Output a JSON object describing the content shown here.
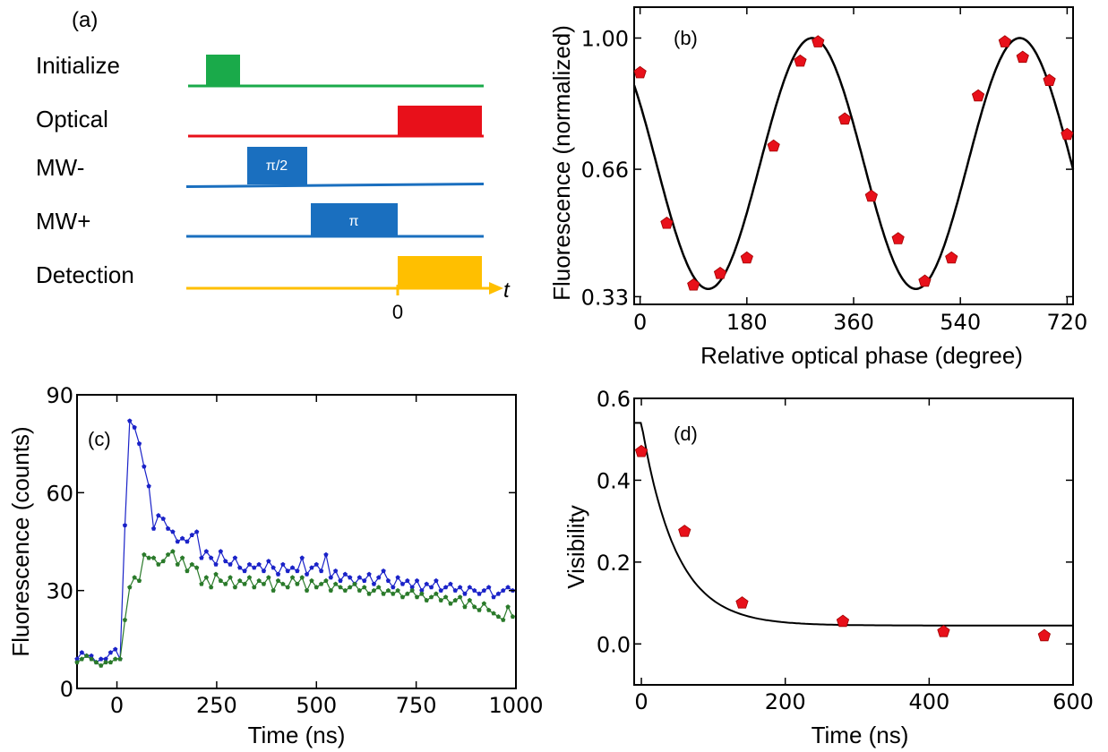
{
  "panel_a": {
    "label": "(a)",
    "rows": [
      {
        "name": "Initialize",
        "color": "#1aaa4a"
      },
      {
        "name": "Optical",
        "color": "#e8101a"
      },
      {
        "name": "MW-",
        "color": "#1a6fbf",
        "pulse_label": "π/2"
      },
      {
        "name": "MW+",
        "color": "#1a6fbf",
        "pulse_label": "π"
      },
      {
        "name": "Detection",
        "color": "#ffbf00"
      }
    ],
    "axis_label": "t",
    "zero_label": "0"
  },
  "chart_data": [
    {
      "id": "b",
      "type": "scatter",
      "panel_label": "(b)",
      "xlabel": "Relative optical phase (degree)",
      "ylabel": "Fluorescence (normalized)",
      "xlim": [
        -10,
        730
      ],
      "ylim": [
        0.31,
        1.08
      ],
      "xticks": [
        0,
        180,
        360,
        540,
        720
      ],
      "xtick_labels": [
        "0",
        "180",
        "360",
        "540",
        "720"
      ],
      "yticks": [
        0.33,
        0.66,
        1.0
      ],
      "ytick_labels": [
        "0.33",
        "0.66",
        "1.00"
      ],
      "points_x": [
        0,
        45,
        90,
        135,
        180,
        225,
        270,
        300,
        345,
        390,
        435,
        480,
        525,
        570,
        615,
        645,
        690,
        720
      ],
      "points_y": [
        0.91,
        0.52,
        0.36,
        0.39,
        0.43,
        0.72,
        0.94,
        0.99,
        0.79,
        0.59,
        0.48,
        0.37,
        0.43,
        0.85,
        0.99,
        0.95,
        0.89,
        0.75
      ],
      "marker_color": "#e8101a",
      "fit": {
        "offset": 0.675,
        "amplitude": 0.325,
        "period": 350,
        "peak_x": 290
      },
      "fit_color": "#000000"
    },
    {
      "id": "c",
      "type": "line",
      "panel_label": "(c)",
      "xlabel": "Time (ns)",
      "ylabel": "Fluorescence (counts)",
      "xlim": [
        -100,
        1000
      ],
      "ylim": [
        0,
        90
      ],
      "xticks": [
        0,
        250,
        500,
        750,
        1000
      ],
      "xtick_labels": [
        "0",
        "250",
        "500",
        "750",
        "1000"
      ],
      "yticks": [
        0,
        30,
        60,
        90
      ],
      "ytick_labels": [
        "0",
        "30",
        "60",
        "90"
      ],
      "x": [
        -100,
        -88,
        -76,
        -64,
        -52,
        -40,
        -28,
        -16,
        -4,
        8,
        20,
        32,
        44,
        56,
        68,
        80,
        92,
        104,
        116,
        128,
        140,
        152,
        164,
        176,
        188,
        200,
        212,
        224,
        236,
        248,
        260,
        272,
        284,
        296,
        308,
        320,
        332,
        344,
        356,
        368,
        380,
        392,
        404,
        416,
        428,
        440,
        452,
        464,
        476,
        488,
        500,
        512,
        524,
        536,
        548,
        560,
        572,
        584,
        596,
        608,
        620,
        632,
        644,
        656,
        668,
        680,
        692,
        704,
        716,
        728,
        740,
        752,
        764,
        776,
        788,
        800,
        812,
        824,
        836,
        848,
        860,
        872,
        884,
        896,
        908,
        920,
        932,
        944,
        956,
        968,
        980,
        992
      ],
      "series": [
        {
          "name": "",
          "color": "#1a22c8",
          "values": [
            9,
            11,
            10,
            10,
            8,
            9,
            9,
            11,
            12,
            9,
            50,
            82,
            80,
            75,
            68,
            62,
            49,
            53,
            52,
            49,
            48,
            45,
            46,
            45,
            47,
            48,
            40,
            42,
            40,
            38,
            42,
            39,
            38,
            40,
            37,
            36,
            38,
            37,
            38,
            36,
            39,
            37,
            35,
            38,
            36,
            37,
            36,
            40,
            35,
            37,
            38,
            36,
            41,
            34,
            36,
            33,
            35,
            34,
            32,
            34,
            33,
            35,
            32,
            34,
            36,
            33,
            31,
            34,
            32,
            33,
            31,
            33,
            30,
            32,
            31,
            33,
            30,
            31,
            32,
            30,
            31,
            29,
            31,
            30,
            29,
            30,
            31,
            28,
            29,
            30,
            31,
            30
          ]
        },
        {
          "name": "",
          "color": "#2a7a2a",
          "values": [
            8,
            9,
            10,
            9,
            8,
            7,
            8,
            8,
            9,
            9,
            21,
            31,
            34,
            33,
            41,
            40,
            40,
            38,
            39,
            41,
            42,
            38,
            40,
            36,
            38,
            37,
            32,
            34,
            31,
            35,
            33,
            32,
            34,
            31,
            33,
            32,
            34,
            31,
            33,
            32,
            34,
            30,
            33,
            32,
            31,
            34,
            32,
            34,
            30,
            33,
            31,
            32,
            33,
            30,
            32,
            31,
            30,
            31,
            32,
            30,
            31,
            29,
            30,
            31,
            29,
            30,
            29,
            30,
            28,
            29,
            30,
            28,
            29,
            27,
            28,
            29,
            27,
            28,
            26,
            27,
            28,
            25,
            27,
            25,
            24,
            26,
            24,
            23,
            22,
            21,
            25,
            22
          ]
        }
      ]
    },
    {
      "id": "d",
      "type": "scatter",
      "panel_label": "(d)",
      "xlabel": "Time (ns)",
      "ylabel": "Visibility",
      "xlim": [
        -10,
        600
      ],
      "ylim": [
        -0.1,
        0.6
      ],
      "xticks": [
        0,
        200,
        400,
        600
      ],
      "xtick_labels": [
        "0",
        "200",
        "400",
        "600"
      ],
      "yticks": [
        0.0,
        0.2,
        0.4,
        0.6
      ],
      "ytick_labels": [
        "0.0",
        "0.2",
        "0.4",
        "0.6"
      ],
      "points_x": [
        0,
        60,
        140,
        280,
        420,
        560
      ],
      "points_y": [
        0.47,
        0.275,
        0.1,
        0.055,
        0.03,
        0.02
      ],
      "marker_color": "#e8101a",
      "fit": {
        "offset": 0.045,
        "amplitude": 0.495,
        "tau": 48
      },
      "fit_color": "#000000"
    }
  ]
}
